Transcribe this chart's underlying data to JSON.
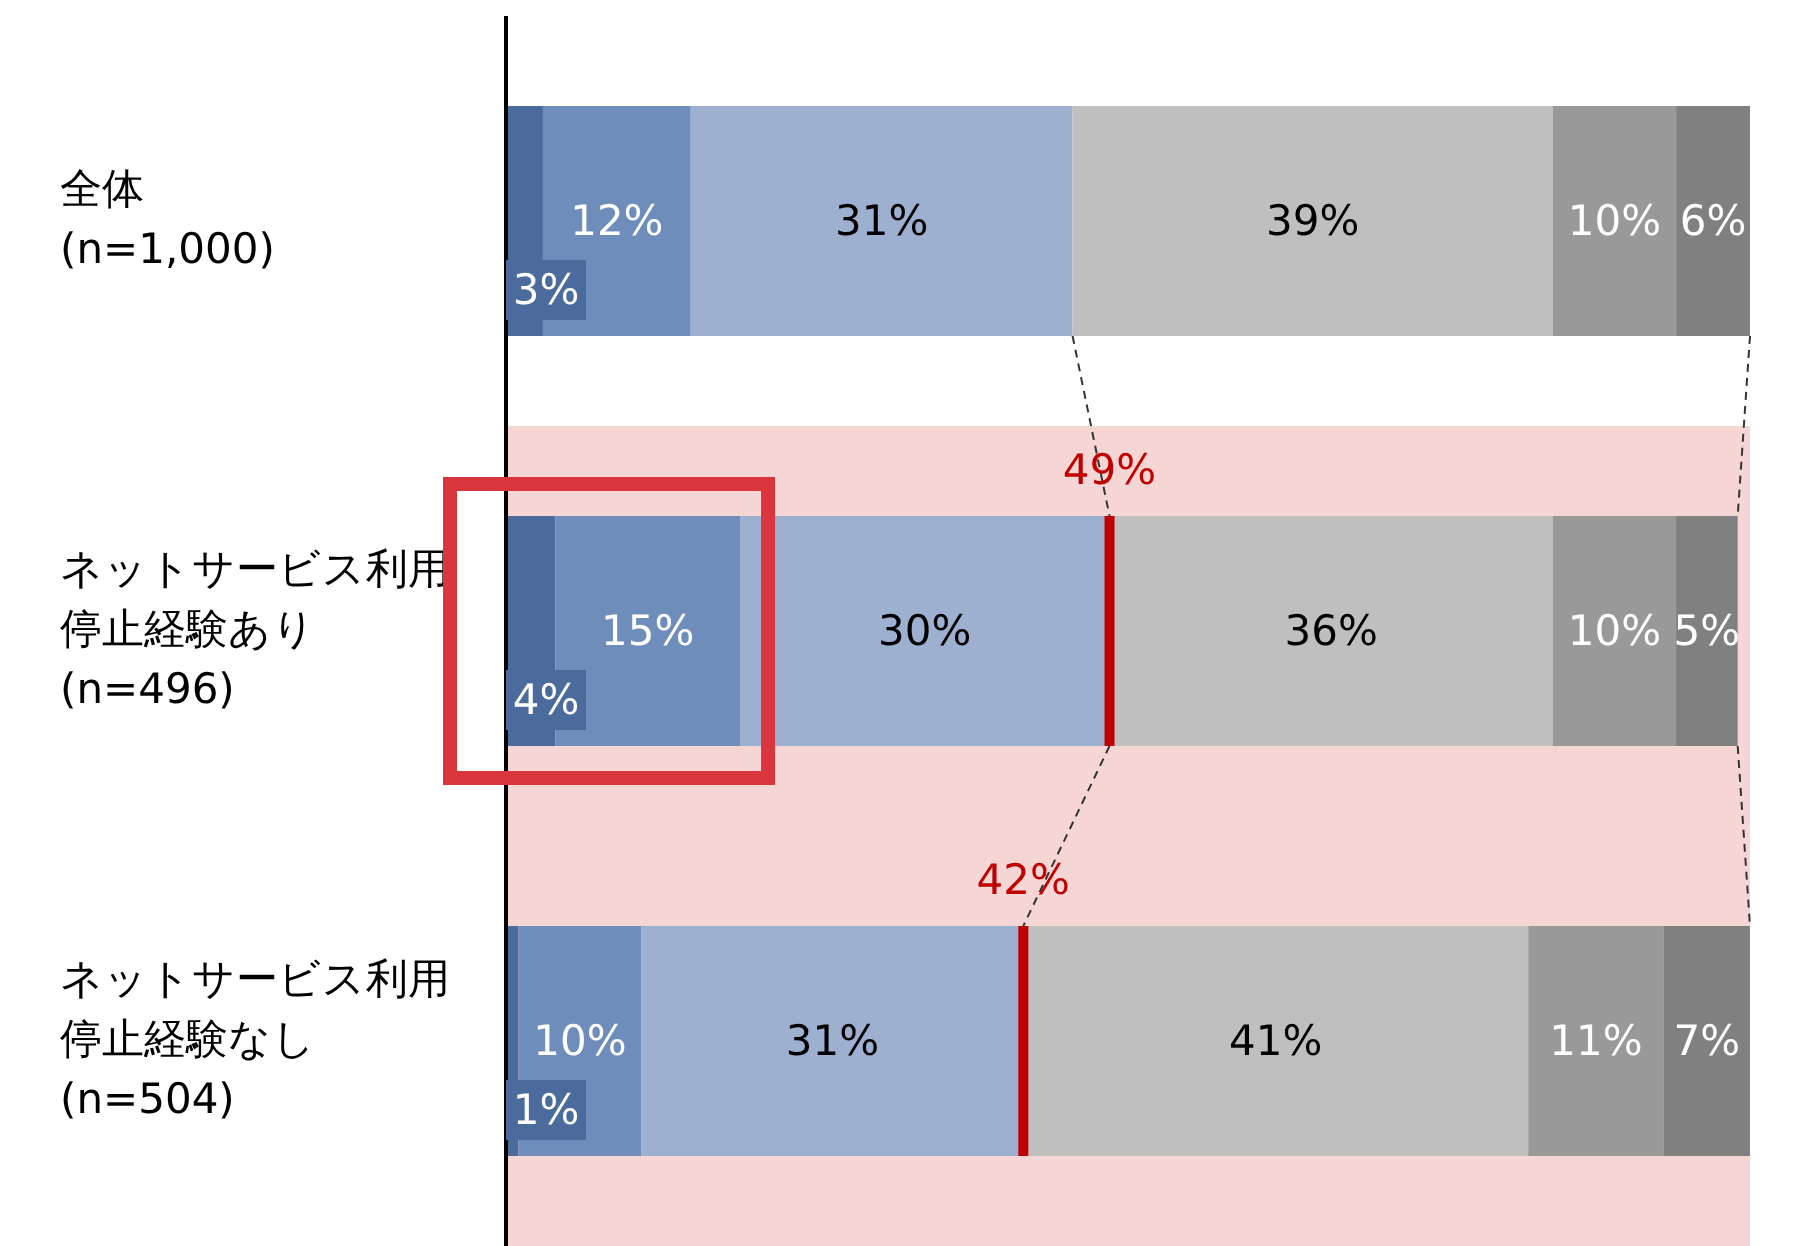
{
  "chart_data": {
    "type": "bar",
    "orientation": "horizontal",
    "stacked": true,
    "categories": [
      "全体\n(n=1,000)",
      "ネットサービス利用停止経験あり\n(n=496)",
      "ネットサービス利用停止経験なし\n(n=504)"
    ],
    "series": [
      {
        "color": "#4a6b9b",
        "values": [
          3,
          4,
          1
        ],
        "value_labels": [
          "3%",
          "4%",
          "1%"
        ]
      },
      {
        "color": "#6f8dbb",
        "values": [
          12,
          15,
          10
        ],
        "value_labels": [
          "12%",
          "15%",
          "10%"
        ]
      },
      {
        "color": "#9db0d0",
        "values": [
          31,
          30,
          31
        ],
        "value_labels": [
          "31%",
          "30%",
          "31%"
        ]
      },
      {
        "color": "#bfbfbf",
        "values": [
          39,
          36,
          41
        ],
        "value_labels": [
          "39%",
          "36%",
          "41%"
        ]
      },
      {
        "color": "#999999",
        "values": [
          10,
          10,
          11
        ],
        "value_labels": [
          "10%",
          "10%",
          "11%"
        ]
      },
      {
        "color": "#808080",
        "values": [
          6,
          5,
          7
        ],
        "value_labels": [
          "6%",
          "5%",
          "7%"
        ]
      }
    ],
    "tick_labels": "y",
    "bands": [
      {
        "axis": "y",
        "from": "ネットサービス利用停止経験あり\n(n=496)",
        "to": "ネットサービス利用停止経験なし\n(n=504)",
        "color": "#f6d5d5"
      }
    ],
    "annotations": [
      "49%",
      "42%"
    ]
  }
}
